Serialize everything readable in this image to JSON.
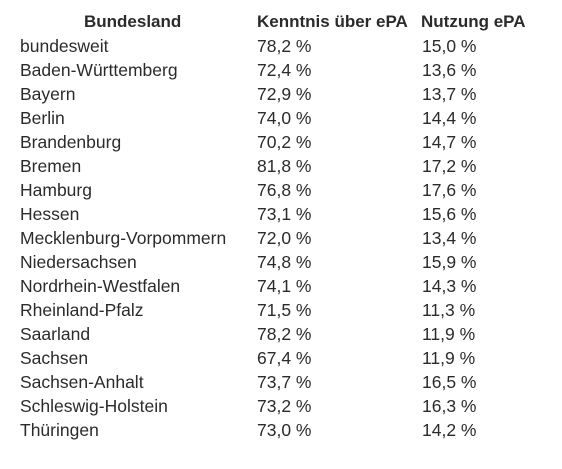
{
  "chart_data": {
    "type": "table",
    "columns": [
      "Bundesland",
      "Kenntnis über ePA",
      "Nutzung ePA"
    ],
    "rows": [
      [
        "bundesweit",
        "78,2 %",
        "15,0 %"
      ],
      [
        "Baden-Württemberg",
        "72,4 %",
        "13,6 %"
      ],
      [
        "Bayern",
        "72,9 %",
        "13,7 %"
      ],
      [
        "Berlin",
        "74,0 %",
        "14,4 %"
      ],
      [
        "Brandenburg",
        "70,2 %",
        "14,7 %"
      ],
      [
        "Bremen",
        "81,8 %",
        "17,2 %"
      ],
      [
        "Hamburg",
        "76,8 %",
        "17,6 %"
      ],
      [
        "Hessen",
        "73,1 %",
        "15,6 %"
      ],
      [
        "Mecklenburg-Vorpommern",
        "72,0 %",
        "13,4 %"
      ],
      [
        "Niedersachsen",
        "74,8 %",
        "15,9 %"
      ],
      [
        "Nordrhein-Westfalen",
        "74,1 %",
        "14,3 %"
      ],
      [
        "Rheinland-Pfalz",
        "71,5 %",
        "11,3 %"
      ],
      [
        "Saarland",
        "78,2 %",
        "11,9 %"
      ],
      [
        "Sachsen",
        "67,4 %",
        "11,9 %"
      ],
      [
        "Sachsen-Anhalt",
        "73,7 %",
        "16,5 %"
      ],
      [
        "Schleswig-Holstein",
        "73,2 %",
        "16,3 %"
      ],
      [
        "Thüringen",
        "73,0 %",
        "14,2 %"
      ]
    ]
  }
}
